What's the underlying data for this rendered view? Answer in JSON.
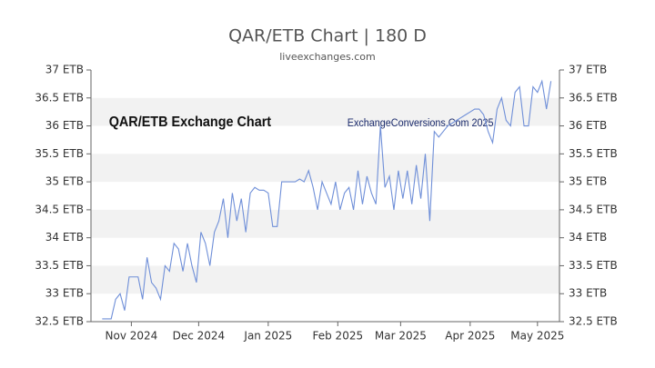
{
  "chart_data": {
    "type": "line",
    "title": "QAR/ETB Chart | 180 D",
    "subtitle": "liveexchanges.com",
    "annotations": [
      "QAR/ETB Exchange Chart",
      "ExchangeConversions.Com 2025"
    ],
    "series": [
      {
        "name": "QAR/ETB",
        "color": "#6f8fd8",
        "values": [
          32.55,
          32.55,
          32.55,
          32.9,
          33.0,
          32.7,
          33.3,
          33.3,
          33.3,
          32.9,
          33.65,
          33.2,
          33.1,
          32.9,
          33.5,
          33.4,
          33.9,
          33.8,
          33.4,
          33.9,
          33.5,
          33.2,
          34.1,
          33.9,
          33.5,
          34.1,
          34.3,
          34.7,
          34.0,
          34.8,
          34.3,
          34.7,
          34.1,
          34.8,
          34.9,
          34.85,
          34.85,
          34.8,
          34.2,
          34.2,
          35.0,
          35.0,
          35.0,
          35.0,
          35.05,
          35.0,
          35.2,
          34.9,
          34.5,
          35.0,
          34.8,
          34.6,
          35.0,
          34.5,
          34.8,
          34.9,
          34.5,
          35.2,
          34.6,
          35.1,
          34.8,
          34.6,
          36.0,
          34.9,
          35.1,
          34.5,
          35.2,
          34.7,
          35.2,
          34.6,
          35.3,
          34.7,
          35.5,
          34.3,
          35.9,
          35.8,
          35.9,
          36.0,
          36.05,
          36.1,
          36.15,
          36.2,
          36.25,
          36.3,
          36.3,
          36.2,
          35.9,
          35.7,
          36.3,
          36.5,
          36.1,
          36.0,
          36.6,
          36.7,
          36.0,
          36.0,
          36.7,
          36.6,
          36.8,
          36.3,
          36.8
        ]
      }
    ],
    "xlim": [
      -2.5,
      101.9
    ],
    "xticks": [
      {
        "value": 6.5,
        "label": "Nov 2024"
      },
      {
        "value": 21.5,
        "label": "Dec 2024"
      },
      {
        "value": 37,
        "label": "Jan 2025"
      },
      {
        "value": 52.5,
        "label": "Feb 2025"
      },
      {
        "value": 66.5,
        "label": "Mar 2025"
      },
      {
        "value": 82,
        "label": "Apr 2025"
      },
      {
        "value": 97,
        "label": "May 2025"
      }
    ],
    "ylim": [
      32.5,
      37
    ],
    "yticks": [
      {
        "value": 32.5,
        "label": "32.5 ETB"
      },
      {
        "value": 33,
        "label": "33 ETB"
      },
      {
        "value": 33.5,
        "label": "33.5 ETB"
      },
      {
        "value": 34,
        "label": "34 ETB"
      },
      {
        "value": 34.5,
        "label": "34.5 ETB"
      },
      {
        "value": 35,
        "label": "35 ETB"
      },
      {
        "value": 35.5,
        "label": "35.5 ETB"
      },
      {
        "value": 36,
        "label": "36 ETB"
      },
      {
        "value": 36.5,
        "label": "36.5 ETB"
      },
      {
        "value": 37,
        "label": "37 ETB"
      }
    ]
  }
}
